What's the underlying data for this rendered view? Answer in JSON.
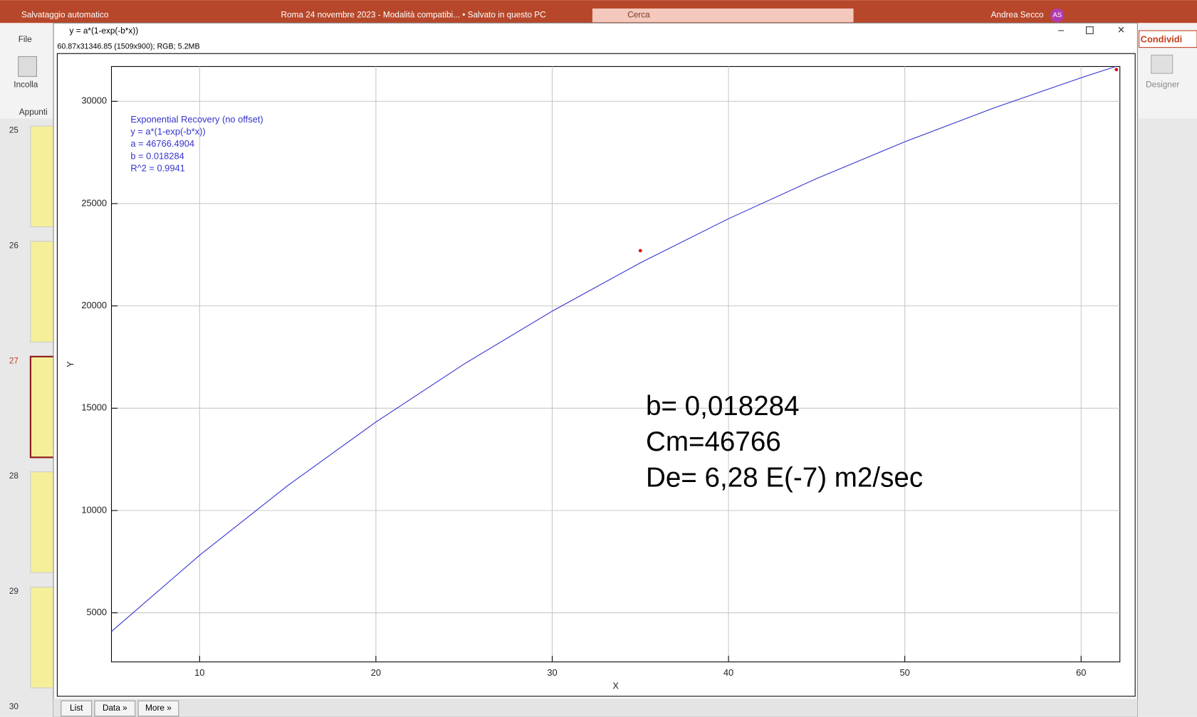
{
  "app": {
    "autosave": "Salvataggio automatico",
    "document": "Roma 24 novembre 2023  -  Modalità compatibi...  •  Salvato in questo PC",
    "search": "Cerca",
    "user": "Andrea Secco",
    "initials": "AS",
    "file_tab": "File",
    "paste": "Incolla",
    "clipboard": "Appunti",
    "share": "Condividi",
    "designer": "Designer",
    "slides": [
      "25",
      "26",
      "27",
      "28",
      "29",
      "30"
    ]
  },
  "window": {
    "title": "y = a*(1-exp(-b*x))",
    "info": "60.87x31346.85  (1509x900); RGB; 5.2MB",
    "buttons": [
      "List",
      "Data »",
      "More »"
    ]
  },
  "chart_data": {
    "type": "line",
    "color": "#3030d0",
    "xlabel": "X",
    "ylabel": "Y",
    "fit_text": [
      "Exponential Recovery (no offset)",
      "y = a*(1-exp(-b*x))",
      "a = 46766.4904",
      "b = 0.018284",
      "R^2 = 0.9941"
    ],
    "annotations": [
      "b= 0,018284",
      "Cm=46766",
      "De= 6,28 E(-7) m2/sec"
    ],
    "x": [
      5,
      10,
      15,
      20,
      25,
      30,
      35,
      40,
      45,
      50,
      55,
      60,
      62
    ],
    "values": [
      4086,
      7815,
      11220,
      14325,
      17159,
      19745,
      22106,
      24262,
      26226,
      28022,
      29659,
      31151,
      31712
    ],
    "points": {
      "color": "#e00000",
      "x": [
        35,
        62
      ],
      "values": [
        22700,
        31550
      ]
    },
    "xlim": [
      5,
      62.2
    ],
    "ylim": [
      2600,
      31700
    ],
    "xticks": [
      10,
      20,
      30,
      40,
      50,
      60
    ],
    "yticks": [
      5000,
      10000,
      15000,
      20000,
      25000,
      30000
    ],
    "grid": true
  }
}
